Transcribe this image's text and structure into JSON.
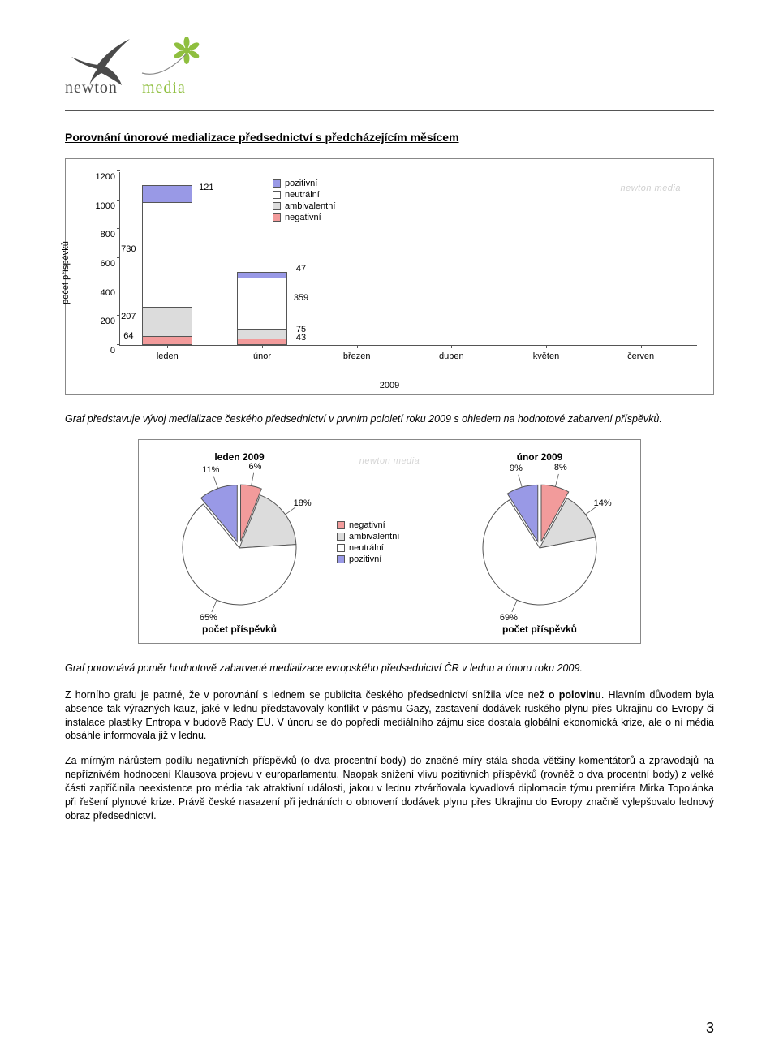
{
  "logo_text": "newton media",
  "section_title": "Porovnání únorové medializace předsednictví s předcházejícím měsícem",
  "bar_chart": {
    "type": "stacked-bar",
    "y_label": "počet příspěvků",
    "ylim": [
      0,
      1200
    ],
    "ytick_step": 200,
    "yticks": [
      "0",
      "200",
      "400",
      "600",
      "800",
      "1000",
      "1200"
    ],
    "categories": [
      "leden",
      "únor",
      "březen",
      "duben",
      "květen",
      "červen"
    ],
    "year": "2009",
    "legend": [
      {
        "label": "pozitivní",
        "color": "#9999e6"
      },
      {
        "label": "neutrální",
        "color": "#ffffff"
      },
      {
        "label": "ambivalentní",
        "color": "#dcdcdc"
      },
      {
        "label": "negativní",
        "color": "#f29b9b"
      }
    ],
    "series": {
      "leden": {
        "negativni": 64,
        "ambivalentni": 207,
        "neutralni": 730,
        "pozitivni": 121
      },
      "unor": {
        "negativni": 43,
        "ambivalentni": 75,
        "neutralni": 359,
        "pozitivni": 47
      }
    },
    "colors": {
      "pozitivni": "#9999e6",
      "neutralni": "#ffffff",
      "ambivalentni": "#dcdcdc",
      "negativni": "#f29b9b"
    },
    "watermark": "newton media"
  },
  "para1": "Graf představuje vývoj medializace českého předsednictví v prvním pololetí roku 2009 s ohledem na hodnotové zabarvení příspěvků.",
  "pies": {
    "caption": "počet příspěvků",
    "watermark": "newton media",
    "legend": [
      {
        "label": "negativní",
        "color": "#f29b9b"
      },
      {
        "label": "ambivalentní",
        "color": "#dcdcdc"
      },
      {
        "label": "neutrální",
        "color": "#ffffff"
      },
      {
        "label": "pozitivní",
        "color": "#9999e6"
      }
    ],
    "leden": {
      "title": "leden 2009",
      "slices": [
        {
          "label": "11%",
          "value": 11,
          "color": "#9999e6"
        },
        {
          "label": "6%",
          "value": 6,
          "color": "#f29b9b"
        },
        {
          "label": "18%",
          "value": 18,
          "color": "#dcdcdc"
        },
        {
          "label": "65%",
          "value": 65,
          "color": "#ffffff"
        }
      ]
    },
    "unor": {
      "title": "únor 2009",
      "slices": [
        {
          "label": "9%",
          "value": 9,
          "color": "#9999e6"
        },
        {
          "label": "8%",
          "value": 8,
          "color": "#f29b9b"
        },
        {
          "label": "14%",
          "value": 14,
          "color": "#dcdcdc"
        },
        {
          "label": "69%",
          "value": 69,
          "color": "#ffffff"
        }
      ]
    }
  },
  "para2": "Graf porovnává poměr hodnotově zabarvené medializace evropského předsednictví ČR v lednu a únoru roku 2009.",
  "para3_a": "Z horního grafu je patrné, že v porovnání s lednem se publicita českého předsednictví snížila více než ",
  "para3_bold": "o polovinu",
  "para3_b": ". Hlavním důvodem byla absence tak výrazných kauz, jaké v lednu představovaly konflikt v pásmu Gazy, zastavení dodávek ruského plynu přes Ukrajinu do Evropy či instalace plastiky Entropa v budově Rady EU. V únoru se do popředí mediálního zájmu sice dostala globální ekonomická krize, ale o ní média obsáhle informovala již v lednu.",
  "para4": "Za mírným nárůstem podílu negativních příspěvků (o dva procentní body) do značné míry stála shoda většiny komentátorů a zpravodajů na nepříznivém hodnocení Klausova projevu v europarlamentu. Naopak snížení vlivu pozitivních příspěvků (rovněž o dva procentní body) z velké části zapříčinila neexistence pro média tak atraktivní události, jakou v lednu ztvárňovala kyvadlová diplomacie týmu premiéra Mirka Topolánka při řešení plynové krize. Právě české nasazení při jednáních o obnovení dodávek plynu přes Ukrajinu do Evropy značně vylepšovalo lednový obraz předsednictví.",
  "page_number": "3"
}
